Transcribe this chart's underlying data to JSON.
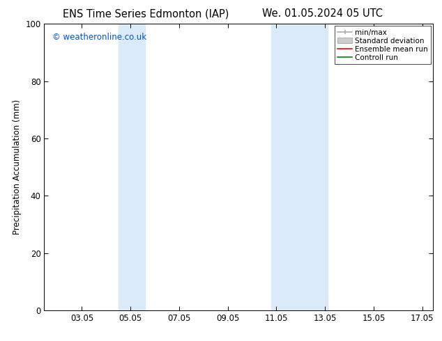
{
  "title_left": "ENS Time Series Edmonton (IAP)",
  "title_right": "We. 01.05.2024 05 UTC",
  "ylabel": "Precipitation Accumulation (mm)",
  "watermark": "© weatheronline.co.uk",
  "watermark_color": "#0055cc",
  "ylim": [
    0,
    100
  ],
  "xlim_start": 1.5,
  "xlim_end": 17.5,
  "xticks": [
    3.05,
    5.05,
    7.05,
    9.05,
    11.05,
    13.05,
    15.05,
    17.05
  ],
  "xtick_labels": [
    "03.05",
    "05.05",
    "07.05",
    "09.05",
    "11.05",
    "13.05",
    "15.05",
    "17.05"
  ],
  "yticks": [
    0,
    20,
    40,
    60,
    80,
    100
  ],
  "shaded_bands": [
    {
      "x_start": 4.55,
      "x_end": 5.65,
      "color": "#daeaf8"
    },
    {
      "x_start": 10.85,
      "x_end": 13.15,
      "color": "#daeaf8"
    }
  ],
  "background_color": "#ffffff",
  "plot_bg_color": "#ffffff",
  "legend_labels": [
    "min/max",
    "Standard deviation",
    "Ensemble mean run",
    "Controll run"
  ],
  "title_fontsize": 10.5,
  "axis_label_fontsize": 8.5,
  "tick_fontsize": 8.5,
  "legend_fontsize": 7.5,
  "watermark_fontsize": 8.5
}
